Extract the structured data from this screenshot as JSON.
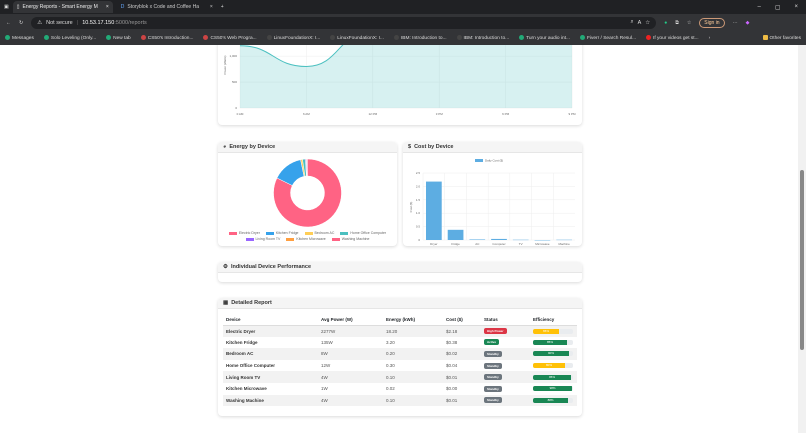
{
  "browser": {
    "tabs": [
      {
        "title": "Energy Reports - Smart Energy M",
        "active": true
      },
      {
        "title": "Storyblok x Code and Coffee Ha",
        "active": false
      }
    ],
    "url_security": "Not secure",
    "url_host": "10.53.17.150",
    "url_path": ":5000/reports",
    "signin": "Sign in",
    "bookmarks": [
      "Messages",
      "Solo Leveling (Only...",
      "New tab",
      "CS50's Introduction...",
      "CS50's Web Progra...",
      "LinuxFoundationX: I...",
      "LinuxFoundationX: I...",
      "IBM: Introduction to...",
      "IBM: Introduction to...",
      "Turn your audio int...",
      "Fiverr / Search Resul...",
      "If your videos get st..."
    ],
    "other_favorites": "Other favorites"
  },
  "colors": {
    "teal": "#4bc0c0",
    "pink": "#ff6384",
    "blue": "#36a2eb",
    "bar": "#5dade2",
    "danger": "#dc3545",
    "success": "#198754",
    "secondary": "#6c757d",
    "warning": "#ffc107"
  },
  "chart_data": [
    {
      "type": "area",
      "ylabel": "Power (Watts)",
      "x": [
        "0 AM",
        "6 AM",
        "12 PM",
        "3 PM",
        "6 PM",
        "9 PM"
      ],
      "yticks": [
        "0",
        "500",
        "1,000",
        "1,500"
      ],
      "values": [
        1200,
        800,
        1500,
        1750,
        1800,
        1800
      ],
      "ylim": [
        0,
        1600
      ],
      "grid": true
    },
    {
      "type": "pie",
      "title": "Energy by Device",
      "labels": [
        "Electric Dryer",
        "Kitchen Fridge",
        "Bedroom AC",
        "Home Office Computer",
        "Living Room TV",
        "Kitchen Microwave",
        "Washing Machine"
      ],
      "values": [
        18.2,
        3.2,
        0.2,
        0.3,
        0.1,
        0.02,
        0.1
      ],
      "colors": [
        "#ff6384",
        "#36a2eb",
        "#ffce56",
        "#4bc0c0",
        "#9966ff",
        "#ff9f40",
        "#ff6384"
      ],
      "legend": "bottom"
    },
    {
      "type": "bar",
      "title": "Cost by Device",
      "series": [
        {
          "name": "Daily Cost ($)",
          "values": [
            2.18,
            0.38,
            0.02,
            0.04,
            0.01,
            0.0,
            0.01
          ]
        }
      ],
      "categories": [
        "Dryer",
        "Fridge",
        "AC",
        "Computer",
        "TV",
        "Microwave",
        "Machine"
      ],
      "ylabel": "Cost ($)",
      "yticks": [
        "0",
        "0.5",
        "1.0",
        "1.5",
        "2.0",
        "2.5"
      ],
      "ylim": [
        0,
        2.5
      ],
      "legend": "top",
      "grid": true
    }
  ],
  "sections": {
    "energy": "Energy by Device",
    "cost": "Cost by Device",
    "performance": "Individual Device Performance",
    "report": "Detailed Report"
  },
  "report": {
    "headers": [
      "Device",
      "Avg Power (W)",
      "Energy (kWh)",
      "Cost ($)",
      "Status",
      "Efficiency"
    ],
    "rows": [
      {
        "device": "Electric Dryer",
        "power": "2277W",
        "energy": "18.20",
        "cost": "$2.18",
        "status": "High Power",
        "status_color": "#dc3545",
        "eff": 65,
        "eff_label": "65%",
        "eff_color": "#ffc107"
      },
      {
        "device": "Kitchen Fridge",
        "power": "135W",
        "energy": "3.20",
        "cost": "$0.38",
        "status": "Active",
        "status_color": "#198754",
        "eff": 85,
        "eff_label": "85%",
        "eff_color": "#198754"
      },
      {
        "device": "Bedroom AC",
        "power": "8W",
        "energy": "0.20",
        "cost": "$0.02",
        "status": "Standby",
        "status_color": "#6c757d",
        "eff": 90,
        "eff_label": "90%",
        "eff_color": "#198754"
      },
      {
        "device": "Home Office Computer",
        "power": "12W",
        "energy": "0.30",
        "cost": "$0.04",
        "status": "Standby",
        "status_color": "#6c757d",
        "eff": 80,
        "eff_label": "80%",
        "eff_color": "#ffc107"
      },
      {
        "device": "Living Room TV",
        "power": "4W",
        "energy": "0.10",
        "cost": "$0.01",
        "status": "Standby",
        "status_color": "#6c757d",
        "eff": 95,
        "eff_label": "95%",
        "eff_color": "#198754"
      },
      {
        "device": "Kitchen Microwave",
        "power": "1W",
        "energy": "0.02",
        "cost": "$0.00",
        "status": "Standby",
        "status_color": "#6c757d",
        "eff": 98,
        "eff_label": "98%",
        "eff_color": "#198754"
      },
      {
        "device": "Washing Machine",
        "power": "4W",
        "energy": "0.10",
        "cost": "$0.01",
        "status": "Standby",
        "status_color": "#6c757d",
        "eff": 88,
        "eff_label": "88%",
        "eff_color": "#198754"
      }
    ]
  }
}
